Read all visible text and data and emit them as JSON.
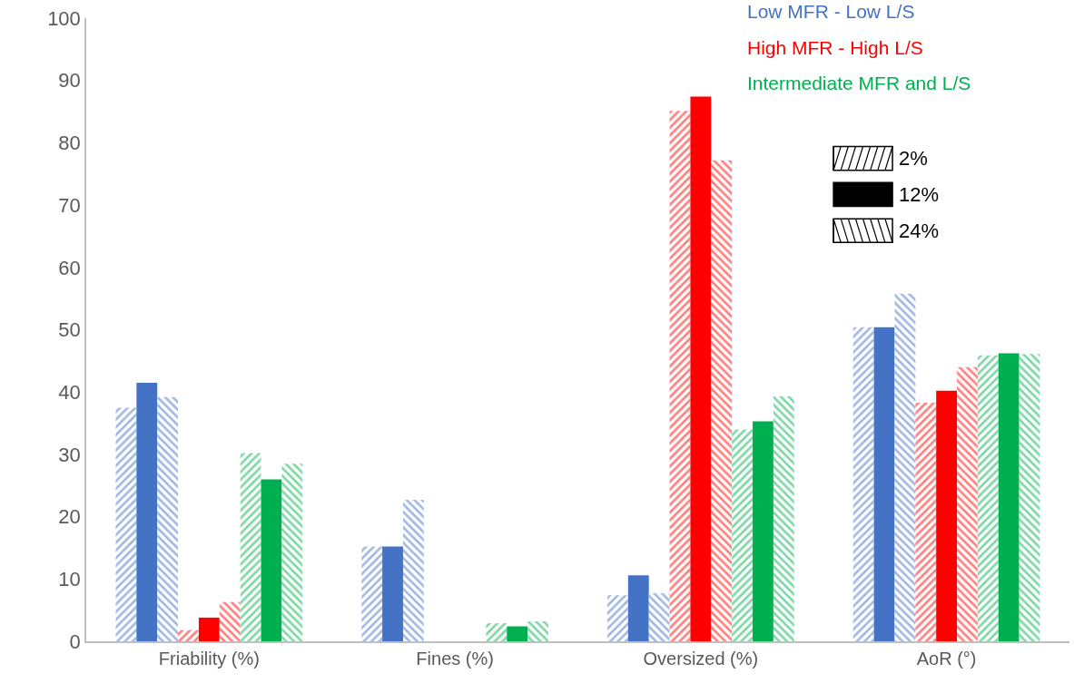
{
  "chart_data": {
    "type": "bar",
    "categories": [
      "Friability (%)",
      "Fines (%)",
      "Oversized (%)",
      "AoR (°)"
    ],
    "ylim": [
      0,
      100
    ],
    "yticks": [
      0,
      10,
      20,
      30,
      40,
      50,
      60,
      70,
      80,
      90,
      100
    ],
    "annotations": [
      "Low MFR - Low L/S",
      "High MFR - High L/S",
      "Intermediate MFR and L/S",
      "2%",
      "12%",
      "24%"
    ],
    "series": [
      {
        "color": "#4472c4",
        "values": [
          37.5,
          15.2,
          7.4,
          50.4
        ]
      },
      {
        "color": "#4472c4",
        "values": [
          41.5,
          15.2,
          10.6,
          50.4
        ]
      },
      {
        "color": "#4472c4",
        "values": [
          39.2,
          22.7,
          7.7,
          55.8
        ]
      },
      {
        "color": "#ff0000",
        "values": [
          1.8,
          0,
          85.1,
          38.3
        ]
      },
      {
        "color": "#ff0000",
        "values": [
          3.8,
          0,
          87.4,
          40.2
        ]
      },
      {
        "color": "#ff0000",
        "values": [
          6.3,
          0,
          77.2,
          44.0
        ]
      },
      {
        "color": "#00b050",
        "values": [
          30.2,
          2.9,
          34.0,
          45.9
        ]
      },
      {
        "color": "#00b050",
        "values": [
          26.0,
          2.4,
          35.3,
          46.2
        ]
      },
      {
        "color": "#00b050",
        "values": [
          28.5,
          3.2,
          39.3,
          46.1
        ]
      }
    ]
  }
}
